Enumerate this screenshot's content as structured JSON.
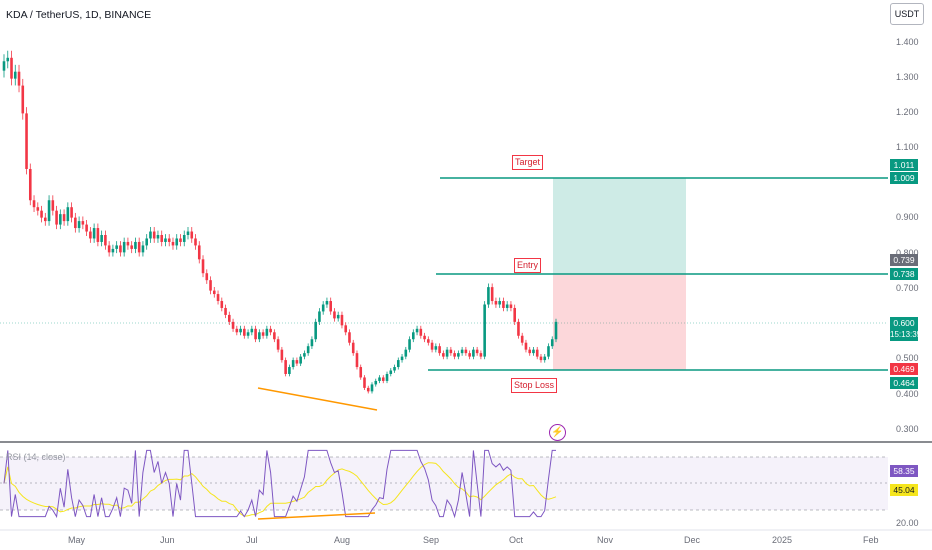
{
  "header": {
    "symbol": "KDA / TetherUS, 1D, BINANCE",
    "currency": "USDT"
  },
  "price_axis": {
    "ticks": [
      "1.400",
      "1.300",
      "1.200",
      "1.100",
      "0.900",
      "0.800",
      "0.700",
      "0.500",
      "0.400",
      "0.300"
    ]
  },
  "tags": {
    "target_high": "1.011",
    "target_low": "1.009",
    "entry_high": "0.739",
    "entry_low": "0.738",
    "current_price": "0.600",
    "countdown": "15:13:35",
    "stop_high": "0.469",
    "stop_low": "0.464"
  },
  "annotations": {
    "target": "Target",
    "entry": "Entry",
    "stop_loss": "Stop Loss"
  },
  "rsi": {
    "title": "RSI (14, close)",
    "value": "58.35",
    "ma_value": "45.04",
    "bottom_tick": "20.00"
  },
  "time_axis": [
    "May",
    "Jun",
    "Jul",
    "Aug",
    "Sep",
    "Oct",
    "Nov",
    "Dec",
    "2025",
    "Feb"
  ],
  "colors": {
    "up": "#089981",
    "down": "#f23645",
    "rsi_line": "#7e57c2",
    "rsi_ma": "#f5e51d",
    "divergence": "#ff9800"
  },
  "chart_data": {
    "type": "candlestick",
    "timeframe": "1D",
    "price_range": [
      0.26,
      1.44
    ],
    "close_series": [
      1.35,
      1.36,
      1.3,
      1.32,
      1.28,
      1.2,
      1.04,
      0.95,
      0.93,
      0.92,
      0.9,
      0.89,
      0.95,
      0.92,
      0.88,
      0.91,
      0.89,
      0.93,
      0.9,
      0.87,
      0.89,
      0.88,
      0.86,
      0.84,
      0.87,
      0.83,
      0.85,
      0.82,
      0.8,
      0.81,
      0.82,
      0.8,
      0.83,
      0.82,
      0.81,
      0.83,
      0.8,
      0.82,
      0.84,
      0.86,
      0.84,
      0.85,
      0.83,
      0.84,
      0.83,
      0.82,
      0.84,
      0.83,
      0.85,
      0.86,
      0.84,
      0.82,
      0.78,
      0.74,
      0.72,
      0.69,
      0.68,
      0.66,
      0.64,
      0.62,
      0.6,
      0.58,
      0.57,
      0.58,
      0.56,
      0.57,
      0.58,
      0.55,
      0.57,
      0.56,
      0.58,
      0.57,
      0.55,
      0.52,
      0.49,
      0.45,
      0.47,
      0.49,
      0.48,
      0.5,
      0.51,
      0.53,
      0.55,
      0.6,
      0.63,
      0.65,
      0.66,
      0.63,
      0.61,
      0.62,
      0.59,
      0.57,
      0.54,
      0.51,
      0.47,
      0.44,
      0.41,
      0.4,
      0.42,
      0.43,
      0.44,
      0.43,
      0.45,
      0.46,
      0.47,
      0.49,
      0.5,
      0.52,
      0.55,
      0.57,
      0.58,
      0.56,
      0.55,
      0.54,
      0.52,
      0.53,
      0.51,
      0.5,
      0.52,
      0.51,
      0.5,
      0.51,
      0.52,
      0.51,
      0.5,
      0.52,
      0.51,
      0.5,
      0.65,
      0.7,
      0.66,
      0.65,
      0.66,
      0.64,
      0.65,
      0.64,
      0.6,
      0.56,
      0.54,
      0.52,
      0.51,
      0.52,
      0.5,
      0.49,
      0.5,
      0.53,
      0.55,
      0.6
    ]
  }
}
